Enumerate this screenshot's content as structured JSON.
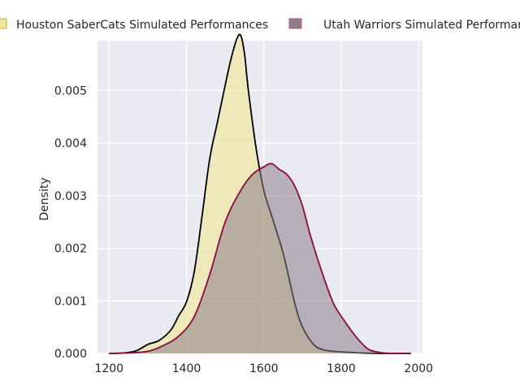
{
  "chart_data": {
    "type": "area",
    "title": "",
    "xlabel": "",
    "ylabel": "Density",
    "xlim": [
      1170,
      2010
    ],
    "ylim": [
      0,
      0.00595
    ],
    "xticks": [
      1200,
      1400,
      1600,
      1800,
      2000
    ],
    "xtick_labels": [
      "1200",
      "1400",
      "1600",
      "1800",
      "2000"
    ],
    "yticks": [
      0,
      0.001,
      0.002,
      0.003,
      0.004,
      0.005
    ],
    "ytick_labels": [
      "0.000",
      "0.001",
      "0.002",
      "0.003",
      "0.004",
      "0.005"
    ],
    "grid": true,
    "legend_position": "top",
    "series": [
      {
        "name": "Houston SaberCats Simulated Performances",
        "fill": "#f0e68c",
        "fill_opacity": 0.55,
        "stroke": "#000000",
        "x": [
          1200,
          1240,
          1270,
          1300,
          1330,
          1360,
          1380,
          1400,
          1420,
          1440,
          1460,
          1480,
          1500,
          1515,
          1530,
          1540,
          1550,
          1560,
          1580,
          1600,
          1620,
          1650,
          1680,
          1700,
          1730,
          1760,
          1800,
          1850,
          1900,
          1950,
          1980
        ],
        "y": [
          0,
          1e-05,
          5e-05,
          0.00017,
          0.00025,
          0.00045,
          0.00072,
          0.00098,
          0.00155,
          0.0026,
          0.0037,
          0.0044,
          0.0051,
          0.0056,
          0.00598,
          0.00605,
          0.0057,
          0.005,
          0.0039,
          0.0031,
          0.00262,
          0.0019,
          0.00095,
          0.0005,
          0.00016,
          6e-05,
          3e-05,
          1e-05,
          0,
          0,
          0
        ]
      },
      {
        "name": "Utah Warriors Simulated Performances",
        "fill": "#8b7d8b",
        "fill_opacity": 0.55,
        "stroke": "#8b0a3c",
        "x": [
          1200,
          1250,
          1300,
          1340,
          1380,
          1420,
          1460,
          1500,
          1540,
          1570,
          1600,
          1620,
          1640,
          1660,
          1680,
          1700,
          1720,
          1750,
          1780,
          1810,
          1840,
          1870,
          1900,
          1930,
          1960,
          1980
        ],
        "y": [
          0,
          1e-05,
          4e-05,
          0.00015,
          0.00033,
          0.0007,
          0.0015,
          0.0025,
          0.0031,
          0.0034,
          0.00355,
          0.00361,
          0.0035,
          0.0034,
          0.00318,
          0.0028,
          0.00225,
          0.00155,
          0.00095,
          0.0006,
          0.0003,
          8e-05,
          2e-05,
          0,
          0,
          0
        ]
      }
    ]
  }
}
